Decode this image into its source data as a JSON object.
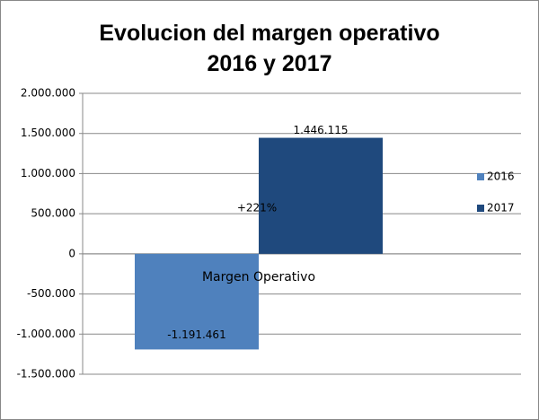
{
  "chart_data": {
    "type": "bar",
    "title": "Evolucion del margen operativo\n2016 y 2017",
    "categories": [
      "Margen Operativo"
    ],
    "series": [
      {
        "name": "2016",
        "color": "#4f81bd",
        "values": [
          -1191461
        ],
        "value_labels": [
          "-1.191.461"
        ]
      },
      {
        "name": "2017",
        "color": "#1f497d",
        "values": [
          1446115
        ],
        "value_labels": [
          "1.446.115"
        ]
      }
    ],
    "annotation": "+221%",
    "ylim": [
      -1500000,
      2000000
    ],
    "yticks": [
      {
        "value": -1500000,
        "label": "-1.500.000"
      },
      {
        "value": -1000000,
        "label": "-1.000.000"
      },
      {
        "value": -500000,
        "label": "-500.000"
      },
      0,
      {
        "value": 500000,
        "label": "500.000"
      },
      {
        "value": 1000000,
        "label": "1.000.000"
      },
      {
        "value": 1500000,
        "label": "1.500.000"
      },
      {
        "value": 2000000,
        "label": "2.000.000"
      }
    ],
    "grid": true,
    "legend": "right"
  }
}
